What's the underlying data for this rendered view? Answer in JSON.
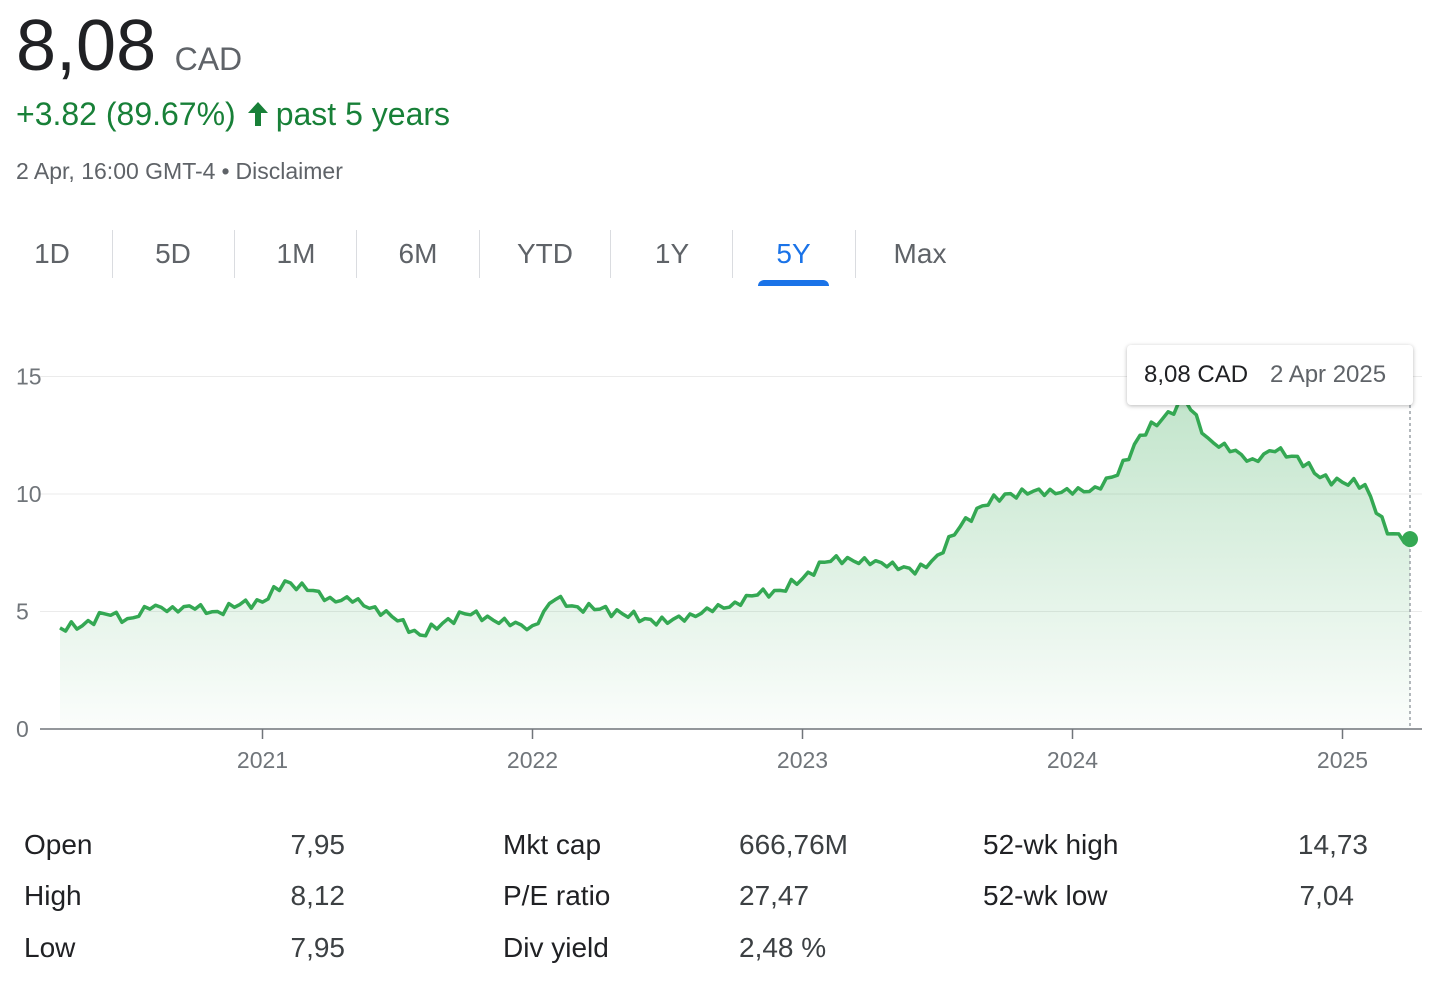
{
  "quote": {
    "price": "8,08",
    "currency": "CAD",
    "change": "+3.82 (89.67%)",
    "period": "past 5 years",
    "timestamp": "2 Apr, 16:00 GMT-4",
    "separator": "•",
    "disclaimer": "Disclaimer",
    "up_color": "#188038"
  },
  "tabs": [
    {
      "label": "1D",
      "active": false
    },
    {
      "label": "5D",
      "active": false
    },
    {
      "label": "1M",
      "active": false
    },
    {
      "label": "6M",
      "active": false
    },
    {
      "label": "YTD",
      "active": false
    },
    {
      "label": "1Y",
      "active": false
    },
    {
      "label": "5Y",
      "active": true
    },
    {
      "label": "Max",
      "active": false
    }
  ],
  "tooltip": {
    "value": "8,08 CAD",
    "date": "2 Apr 2025"
  },
  "chart_data": {
    "type": "area",
    "x_ticks": [
      "2021",
      "2022",
      "2023",
      "2024",
      "2025"
    ],
    "y_ticks": [
      "0",
      "5",
      "10",
      "15"
    ],
    "ylim": [
      0,
      15
    ],
    "x_range": [
      "2020-04",
      "2025-04"
    ],
    "line_color": "#34a853",
    "series": [
      {
        "x": [
          "2020-04",
          "2020-05",
          "2020-06",
          "2020-07",
          "2020-08",
          "2020-09",
          "2020-10",
          "2020-11",
          "2020-12",
          "2021-01",
          "2021-02",
          "2021-03",
          "2021-04",
          "2021-05",
          "2021-06",
          "2021-07",
          "2021-08",
          "2021-09",
          "2021-10",
          "2021-11",
          "2021-12",
          "2022-01",
          "2022-02",
          "2022-03",
          "2022-04",
          "2022-05",
          "2022-06",
          "2022-07",
          "2022-08",
          "2022-09",
          "2022-10",
          "2022-11",
          "2022-12",
          "2023-01",
          "2023-02",
          "2023-03",
          "2023-04",
          "2023-05",
          "2023-06",
          "2023-07",
          "2023-08",
          "2023-09",
          "2023-10",
          "2023-11",
          "2023-12",
          "2024-01",
          "2024-02",
          "2024-03",
          "2024-04",
          "2024-05",
          "2024-06",
          "2024-07",
          "2024-08",
          "2024-09",
          "2024-10",
          "2024-11",
          "2024-12",
          "2025-01",
          "2025-02",
          "2025-03",
          "2025-04"
        ],
        "y": [
          4.3,
          4.4,
          4.9,
          4.7,
          5.1,
          5.2,
          5.1,
          5.0,
          5.3,
          5.4,
          6.3,
          5.9,
          5.6,
          5.4,
          5.2,
          4.6,
          4.0,
          4.5,
          4.9,
          4.8,
          4.4,
          4.4,
          5.5,
          5.2,
          5.1,
          4.9,
          4.7,
          4.5,
          4.9,
          5.0,
          5.4,
          5.7,
          5.9,
          6.4,
          7.1,
          7.3,
          7.0,
          7.1,
          6.6,
          7.4,
          8.6,
          9.5,
          10.0,
          10.0,
          10.2,
          10.0,
          10.3,
          10.8,
          12.5,
          13.2,
          14.0,
          12.4,
          11.8,
          11.5,
          11.8,
          11.6,
          10.7,
          10.5,
          10.4,
          8.3,
          8.08
        ]
      }
    ]
  },
  "stats": [
    {
      "label": "Open",
      "value": "7,95"
    },
    {
      "label": "High",
      "value": "8,12"
    },
    {
      "label": "Low",
      "value": "7,95"
    },
    {
      "label": "Mkt cap",
      "value": "666,76M"
    },
    {
      "label": "P/E ratio",
      "value": "27,47"
    },
    {
      "label": "Div yield",
      "value": "2,48 %"
    },
    {
      "label": "52-wk high",
      "value": "14,73"
    },
    {
      "label": "52-wk low",
      "value": "7,04"
    }
  ]
}
